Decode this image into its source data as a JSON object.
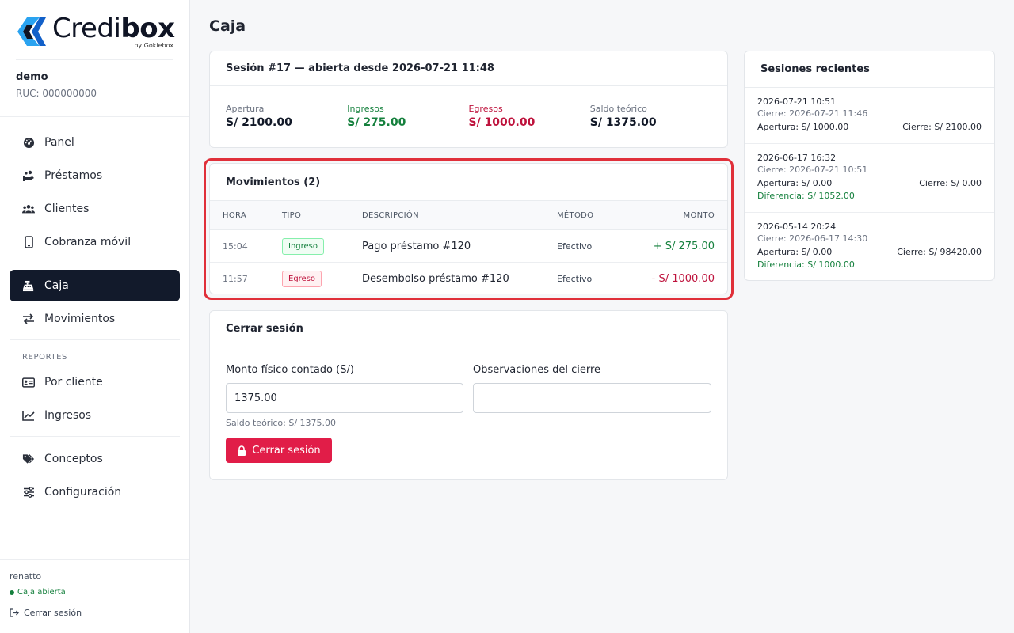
{
  "brand": {
    "word_regular": "Credi",
    "word_bold": "box",
    "byline": "by Gokiebox"
  },
  "company": {
    "name": "demo",
    "ruc": "RUC: 000000000"
  },
  "nav": {
    "items": [
      {
        "label": "Panel",
        "icon": "gauge-icon"
      },
      {
        "label": "Préstamos",
        "icon": "hand-coins-icon"
      },
      {
        "label": "Clientes",
        "icon": "users-icon"
      },
      {
        "label": "Cobranza móvil",
        "icon": "mobile-icon"
      }
    ],
    "caja": {
      "label": "Caja",
      "icon": "cash-register-icon"
    },
    "movimientos": {
      "label": "Movimientos",
      "icon": "arrows-swap-icon"
    },
    "reports_heading": "REPORTES",
    "reports": [
      {
        "label": "Por cliente",
        "icon": "id-card-icon"
      },
      {
        "label": "Ingresos",
        "icon": "chart-line-icon"
      }
    ],
    "config": [
      {
        "label": "Conceptos",
        "icon": "tags-icon"
      },
      {
        "label": "Configuración",
        "icon": "sliders-icon"
      }
    ]
  },
  "footer": {
    "user": "renatto",
    "status": "Caja abierta",
    "logout": "Cerrar sesión"
  },
  "page": {
    "title": "Caja"
  },
  "session": {
    "title": "Sesión #17 — abierta desde 2026-07-21 11:48",
    "stats": [
      {
        "label": "Apertura",
        "value": "S/ 2100.00"
      },
      {
        "label": "Ingresos",
        "value": "S/ 275.00"
      },
      {
        "label": "Egresos",
        "value": "S/ 1000.00"
      },
      {
        "label": "Saldo teórico",
        "value": "S/ 1375.00"
      }
    ]
  },
  "movements": {
    "title": "Movimientos (2)",
    "columns": {
      "hora": "HORA",
      "tipo": "TIPO",
      "descripcion": "DESCRIPCIÓN",
      "metodo": "MÉTODO",
      "monto": "MONTO"
    },
    "rows": [
      {
        "hora": "15:04",
        "tipo": "Ingreso",
        "descripcion": "Pago préstamo #120",
        "metodo": "Efectivo",
        "monto": "+ S/ 275.00"
      },
      {
        "hora": "11:57",
        "tipo": "Egreso",
        "descripcion": "Desembolso préstamo #120",
        "metodo": "Efectivo",
        "monto": "- S/ 1000.00"
      }
    ]
  },
  "close": {
    "title": "Cerrar sesión",
    "amount_label": "Monto físico contado (S/)",
    "amount_value": "1375.00",
    "obs_label": "Observaciones del cierre",
    "obs_value": "",
    "hint": "Saldo teórico: S/ 1375.00",
    "button": "Cerrar sesión"
  },
  "recent": {
    "title": "Sesiones recientes",
    "items": [
      {
        "open": "2026-07-21 10:51",
        "close": "Cierre: 2026-07-21 11:46",
        "apertura": "Apertura: S/ 1000.00",
        "cierre": "Cierre: S/ 2100.00",
        "diff": ""
      },
      {
        "open": "2026-06-17 16:32",
        "close": "Cierre: 2026-07-21 10:51",
        "apertura": "Apertura: S/ 0.00",
        "cierre": "Cierre: S/ 0.00",
        "diff": "Diferencia: S/ 1052.00"
      },
      {
        "open": "2026-05-14 20:24",
        "close": "Cierre: 2026-06-17 14:30",
        "apertura": "Apertura: S/ 0.00",
        "cierre": "Cierre: S/ 98420.00",
        "diff": "Diferencia: S/ 1000.00"
      }
    ]
  },
  "colors": {
    "accent_dark": "#121a2b",
    "green": "#15803d",
    "red": "#be123c",
    "danger_button": "#e11d48",
    "highlight": "#e0303a",
    "logo_blue": "#1d7fe6"
  }
}
